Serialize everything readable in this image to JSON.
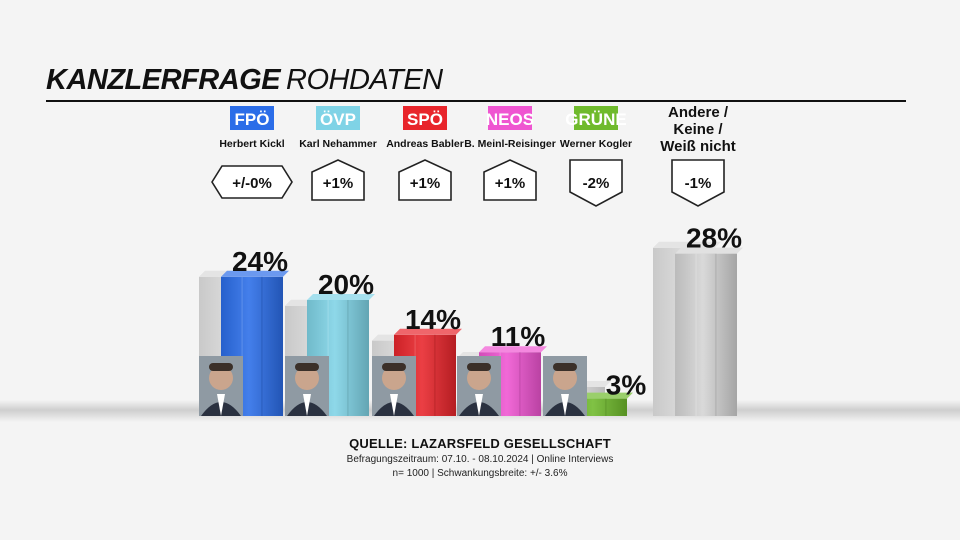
{
  "title": {
    "bold": "KANZLERFRAGE",
    "light": "ROHDATEN"
  },
  "chart_data": {
    "type": "bar",
    "title": "KANZLERFRAGE ROHDATEN",
    "categories": [
      "FPÖ",
      "ÖVP",
      "SPÖ",
      "NEOS",
      "GRÜNE",
      "Andere / Keine / Weiß nicht"
    ],
    "candidates": [
      "Herbert Kickl",
      "Karl Nehammer",
      "Andreas Babler",
      "B. Meinl-Reisinger",
      "Werner Kogler",
      ""
    ],
    "series": [
      {
        "values": [
          24,
          20,
          14,
          11,
          3,
          28
        ]
      }
    ],
    "value_labels": [
      "24%",
      "20%",
      "14%",
      "11%",
      "3%",
      "28%"
    ],
    "changes": [
      "+/-0%",
      "+1%",
      "+1%",
      "+1%",
      "-2%",
      "-1%"
    ],
    "change_direction": [
      "neutral",
      "up",
      "up",
      "up",
      "down",
      "down"
    ],
    "previous_values": [
      24,
      19,
      13,
      10,
      5,
      29
    ],
    "colors": [
      "#2b6de8",
      "#7fd3e6",
      "#e8252b",
      "#ef55d1",
      "#6fba2c",
      "#d4d4d4"
    ],
    "ylim": [
      0,
      30
    ]
  },
  "other_label_lines": [
    "Andere /",
    "Keine /",
    "Weiß nicht"
  ],
  "source": {
    "title": "QUELLE: LAZARSFELD GESELLSCHAFT",
    "line1": "Befragungszeitraum: 07.10. - 08.10.2024 | Online Interviews",
    "line2": "n= 1000 | Schwankungsbreite: +/- 3.6%"
  }
}
